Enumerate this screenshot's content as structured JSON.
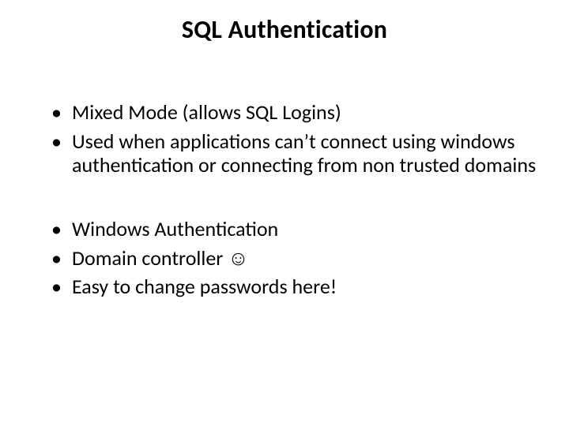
{
  "slide": {
    "title": "SQL Authentication",
    "title_fontsize": 32,
    "title_weight": 700,
    "title_color": "#000000",
    "background_color": "#ffffff",
    "body_fontsize": 26,
    "body_color": "#000000",
    "bullet_color": "#000000",
    "bullets_group1": [
      "Mixed Mode (allows SQL Logins)",
      "Used when applications can’t connect using windows authentication or connecting from non trusted domains"
    ],
    "bullets_group2": [
      "Windows Authentication",
      "Domain controller ☺",
      "Easy to change passwords here!"
    ]
  }
}
